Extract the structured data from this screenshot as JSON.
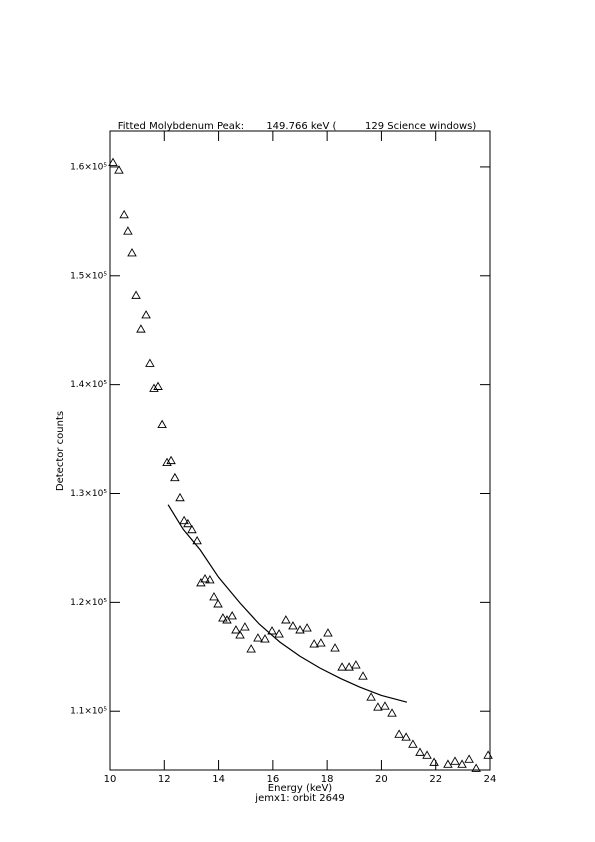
{
  "chart_data": {
    "type": "scatter",
    "title": "Fitted Molybdenum Peak:       149.766 keV (         129 Science windows)",
    "x_label": "Energy (keV)",
    "subtitle": "jemx1: orbit 2649",
    "y_label": "Detector counts",
    "xlim": [
      10,
      24
    ],
    "xticks": [
      10,
      12,
      14,
      16,
      18,
      20,
      22,
      24
    ],
    "ylim": [
      104600,
      163300
    ],
    "yticks": [
      {
        "value": 110000,
        "label": "1.1×10⁵"
      },
      {
        "value": 120000,
        "label": "1.2×10⁵"
      },
      {
        "value": 130000,
        "label": "1.3×10⁵"
      },
      {
        "value": 140000,
        "label": "1.4×10⁵"
      },
      {
        "value": 150000,
        "label": "1.5×10⁵"
      },
      {
        "value": 160000,
        "label": "1.6×10⁵"
      }
    ],
    "color": "#000000",
    "series": [
      {
        "mode": "markers",
        "marker": "triangle",
        "x": [
          10.11,
          10.33,
          10.52,
          10.66,
          10.81,
          10.96,
          11.14,
          11.33,
          11.47,
          11.62,
          11.77,
          11.92,
          12.1,
          12.25,
          12.39,
          12.58,
          12.73,
          12.87,
          13.02,
          13.21,
          13.35,
          13.5,
          13.68,
          13.83,
          13.98,
          14.16,
          14.31,
          14.5,
          14.64,
          14.79,
          14.97,
          15.2,
          15.45,
          15.71,
          15.97,
          16.23,
          16.48,
          16.74,
          17.0,
          17.26,
          17.52,
          17.77,
          18.03,
          18.29,
          18.55,
          18.81,
          19.06,
          19.32,
          19.62,
          19.87,
          20.13,
          20.39,
          20.65,
          20.91,
          21.16,
          21.42,
          21.68,
          21.94,
          22.45,
          22.71,
          22.97,
          23.23,
          23.49,
          23.93
        ],
        "values": [
          160400,
          159700,
          155600,
          154100,
          152100,
          148200,
          145100,
          146400,
          141950,
          139650,
          139830,
          136330,
          132840,
          133020,
          131450,
          129610,
          127500,
          127220,
          126670,
          125650,
          121790,
          122150,
          122060,
          120500,
          119850,
          118560,
          118380,
          118750,
          117460,
          117000,
          117730,
          115710,
          116720,
          116630,
          117370,
          117090,
          118380,
          117830,
          117460,
          117640,
          116170,
          116260,
          117180,
          115800,
          114050,
          114050,
          114240,
          113220,
          111290,
          110370,
          110460,
          109820,
          107880,
          107610,
          106960,
          106220,
          105950,
          105300,
          105120,
          105400,
          105120,
          105580,
          104750,
          105950
        ]
      },
      {
        "mode": "line",
        "x": [
          12.14,
          12.7,
          13.32,
          14.0,
          14.79,
          15.5,
          16.26,
          17.0,
          17.74,
          18.5,
          19.21,
          20.0,
          20.94
        ],
        "values": [
          128970,
          126700,
          124830,
          122300,
          119940,
          118000,
          116350,
          115050,
          113960,
          113000,
          112210,
          111450,
          110830
        ]
      }
    ]
  }
}
